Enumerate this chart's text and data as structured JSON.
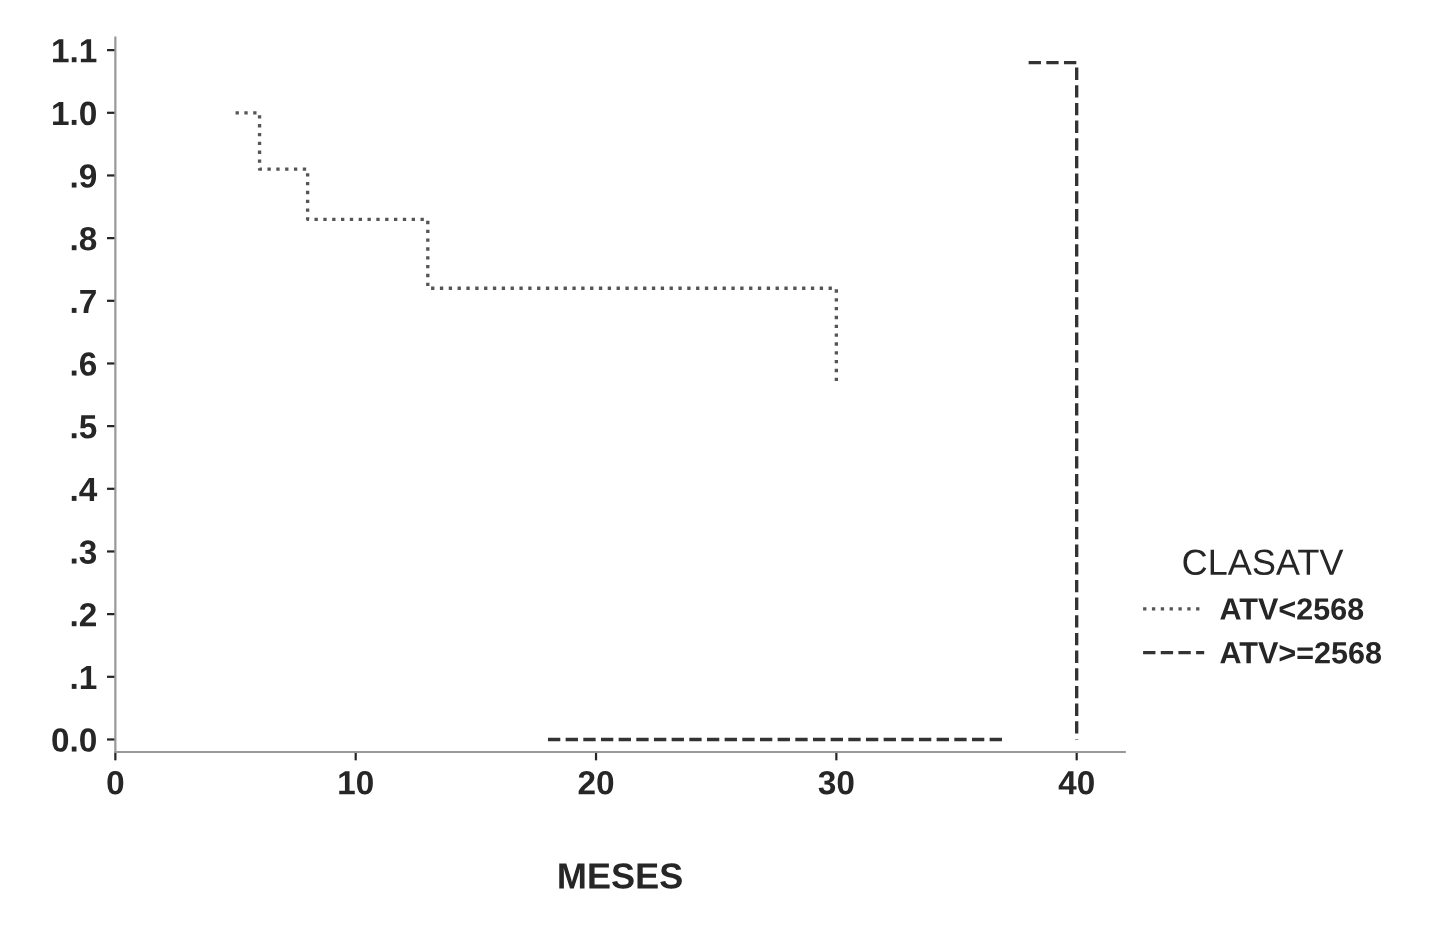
{
  "chart_data": {
    "type": "step",
    "xlabel": "MESES",
    "legend_title": "CLASATV",
    "series": [
      {
        "name": "ATV<2568",
        "color": "#555555",
        "line_style": "dotted",
        "x": [
          5,
          6,
          8,
          13,
          30,
          30
        ],
        "values": [
          1.0,
          0.91,
          0.83,
          0.72,
          0.72,
          0.57
        ]
      },
      {
        "name": "ATV>=2568",
        "color": "#333333",
        "line_style": "dashed",
        "x": [
          18,
          36,
          37,
          38,
          40,
          40
        ],
        "values": [
          0.0,
          0.0,
          null,
          1.08,
          1.08,
          0.0
        ]
      }
    ],
    "xlim": [
      0,
      42
    ],
    "xticks": [
      0,
      10,
      20,
      30,
      40
    ],
    "ylim": [
      -0.02,
      1.12
    ],
    "yticks": [
      {
        "value": 0.0,
        "label": "0.0"
      },
      {
        "value": 0.1,
        "label": ".1"
      },
      {
        "value": 0.2,
        "label": ".2"
      },
      {
        "value": 0.3,
        "label": ".3"
      },
      {
        "value": 0.4,
        "label": ".4"
      },
      {
        "value": 0.5,
        "label": ".5"
      },
      {
        "value": 0.6,
        "label": ".6"
      },
      {
        "value": 0.7,
        "label": ".7"
      },
      {
        "value": 0.8,
        "label": ".8"
      },
      {
        "value": 0.9,
        "label": ".9"
      },
      {
        "value": 1.0,
        "label": "1.0"
      },
      {
        "value": 1.1,
        "label": "1.1"
      }
    ],
    "grid": false,
    "legend": "right",
    "marker": "none"
  }
}
